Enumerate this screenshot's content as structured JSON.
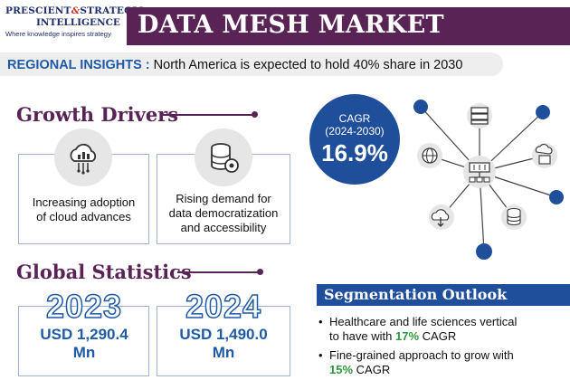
{
  "logo": {
    "line1a": "PRESCIENT",
    "amp": "&",
    "line1b": "STRATEGIC",
    "line2": "INTELLIGENCE",
    "tagline": "Where knowledge inspires strategy"
  },
  "title": "DATA MESH MARKET",
  "regional": {
    "label": "REGIONAL INSIGHTS :",
    "text": "North America is expected to hold 40% share in 2030"
  },
  "growth": {
    "title": "Growth Drivers",
    "cards": [
      {
        "icon": "cloud-analytics-icon",
        "text_line1": "Increasing adoption",
        "text_line2": "of cloud advances"
      },
      {
        "icon": "database-gear-icon",
        "text_line1": "Rising demand for",
        "text_line2": "data democratization",
        "text_line3": "and accessibility"
      }
    ]
  },
  "stats": {
    "title": "Global Statistics",
    "items": [
      {
        "year": "2023",
        "value_line1": "USD 1,290.4",
        "value_line2": "Mn"
      },
      {
        "year": "2024",
        "value_line1": "USD 1,490.0",
        "value_line2": "Mn"
      }
    ]
  },
  "cagr": {
    "label_line1": "CAGR",
    "label_line2": "(2024-2030)",
    "value": "16.9%"
  },
  "segmentation": {
    "title": "Segmentation Outlook",
    "items": [
      {
        "text_line1": "Healthcare and life sciences vertical",
        "text_line2a": "to have with ",
        "highlight": "17%",
        "text_line2b": " CAGR"
      },
      {
        "text_line1": "Fine-grained approach to grow with",
        "highlight": "15%",
        "text_line2b": " CAGR"
      }
    ]
  },
  "colors": {
    "brand_purple": "#5a2356",
    "brand_blue": "#1f4f9a",
    "accent_green": "#2f9a3a"
  }
}
